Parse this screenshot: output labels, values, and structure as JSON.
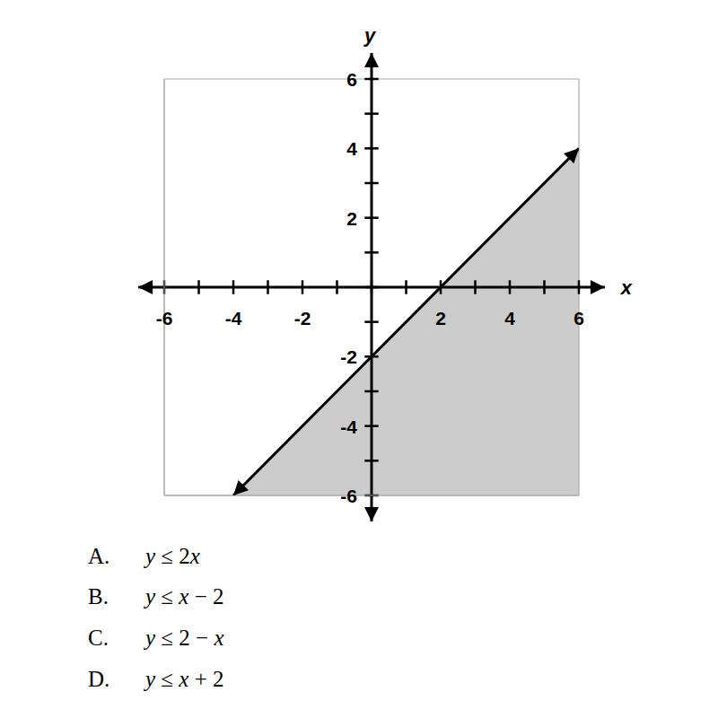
{
  "chart_data": {
    "type": "area",
    "x": [
      -4,
      6
    ],
    "values": [
      -6,
      4
    ],
    "color": "#aaaaaa",
    "xlim": [
      -6,
      6
    ],
    "ylim": [
      -6,
      6
    ],
    "xticks": [
      -6,
      -4,
      -2,
      2,
      4,
      6
    ],
    "yticks": [
      -6,
      -4,
      -2,
      2,
      4,
      6
    ],
    "x_label": "x",
    "y_label": "y",
    "grid": true
  },
  "choices": [
    {
      "letter": "A.",
      "text": "y ≤ 2x"
    },
    {
      "letter": "B.",
      "text": "y ≤ x − 2"
    },
    {
      "letter": "C.",
      "text": "y ≤ 2 − x"
    },
    {
      "letter": "D.",
      "text": "y ≤ x + 2"
    }
  ]
}
